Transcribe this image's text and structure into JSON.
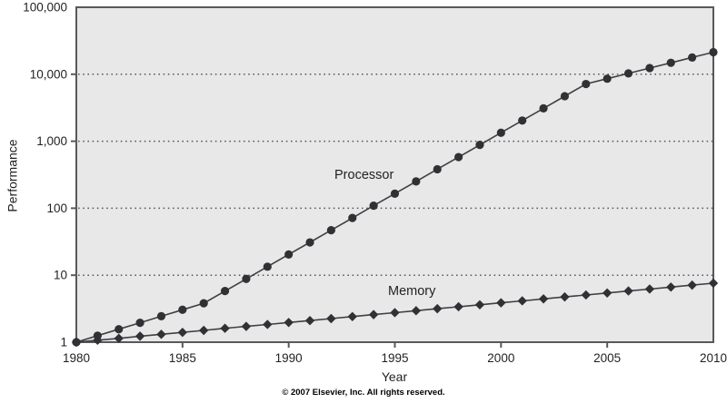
{
  "footer": {
    "copyright": "© 2007 Elsevier, Inc. All rights reserved."
  },
  "chart_data": {
    "type": "line",
    "title": "",
    "xlabel": "Year",
    "ylabel": "Performance",
    "x_scale": "linear",
    "y_scale": "log",
    "xlim": [
      1980,
      2010
    ],
    "ylim": [
      1,
      100000
    ],
    "x_ticks": [
      1980,
      1985,
      1990,
      1995,
      2000,
      2005,
      2010
    ],
    "x_tick_labels": [
      "1980",
      "1985",
      "1990",
      "1995",
      "2000",
      "2005",
      "2010"
    ],
    "y_ticks": [
      1,
      10,
      100,
      1000,
      10000,
      100000
    ],
    "y_tick_labels": [
      "1",
      "10",
      "100",
      "1,000",
      "10,000",
      "100,000"
    ],
    "grid": "horizontal dotted lines at each power of 10",
    "legend_position": "inline labels next to lines",
    "plot_bg_color": "#e8e8e9",
    "axis_color": "#58595b",
    "grid_color": "#59595b",
    "line_color": "#3f4042",
    "marker_color": "#303134",
    "x": [
      1980,
      1981,
      1982,
      1983,
      1984,
      1985,
      1986,
      1987,
      1988,
      1989,
      1990,
      1991,
      1992,
      1993,
      1994,
      1995,
      1996,
      1997,
      1998,
      1999,
      2000,
      2001,
      2002,
      2003,
      2004,
      2005,
      2006,
      2007,
      2008,
      2009,
      2010
    ],
    "series": [
      {
        "name": "Processor",
        "marker": "circle",
        "values": [
          1,
          1.25,
          1.56,
          1.95,
          2.44,
          3.05,
          3.81,
          5.8,
          8.81,
          13.4,
          20.4,
          30.9,
          47,
          71.5,
          109,
          165,
          251,
          382,
          580,
          881,
          1340,
          2037,
          3096,
          4706,
          7153,
          8584,
          10300,
          12360,
          14830,
          17800,
          21360
        ]
      },
      {
        "name": "Memory",
        "marker": "diamond",
        "values": [
          1,
          1.07,
          1.14,
          1.23,
          1.31,
          1.4,
          1.5,
          1.61,
          1.72,
          1.84,
          1.97,
          2.1,
          2.25,
          2.41,
          2.58,
          2.76,
          2.95,
          3.16,
          3.38,
          3.62,
          3.87,
          4.14,
          4.43,
          4.74,
          5.07,
          5.43,
          5.81,
          6.21,
          6.65,
          7.11,
          7.61
        ]
      }
    ]
  }
}
